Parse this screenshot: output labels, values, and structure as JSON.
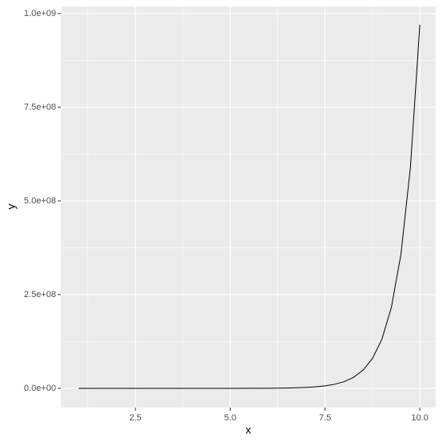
{
  "chart_data": {
    "type": "line",
    "x": [
      1,
      2,
      3,
      4,
      5,
      6,
      6.5,
      7,
      7.25,
      7.5,
      7.75,
      8,
      8.25,
      8.5,
      8.75,
      9,
      9.25,
      9.5,
      9.75,
      10
    ],
    "series": [
      {
        "color": "#000000",
        "values": [
          0,
          0,
          0,
          6000,
          44000,
          325000,
          885000,
          2404000,
          3964000,
          6536000,
          10776000,
          17766000,
          29291000,
          48293000,
          79622000,
          131275000,
          216436000,
          356843000,
          588337000,
          970000000
        ]
      }
    ],
    "xlabel": "x",
    "ylabel": "y",
    "xlim": [
      0.535,
      10.42
    ],
    "xticks": [
      {
        "value": 2.5,
        "label": "2.5"
      },
      {
        "value": 5,
        "label": "5.0"
      },
      {
        "value": 7.5,
        "label": "7.5"
      },
      {
        "value": 10,
        "label": "10.0"
      }
    ],
    "ylim": [
      -51300000,
      1019000000
    ],
    "yticks": [
      {
        "value": 0,
        "label": "0.0e+00"
      },
      {
        "value": 250000000,
        "label": "2.5e+08"
      },
      {
        "value": 500000000,
        "label": "5.0e+08"
      },
      {
        "value": 750000000,
        "label": "7.5e+08"
      },
      {
        "value": 1000000000,
        "label": "1.0e+09"
      }
    ],
    "grid": true
  }
}
